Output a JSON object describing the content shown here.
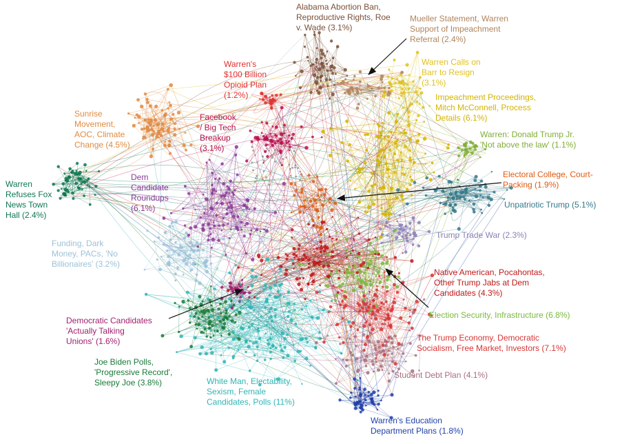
{
  "clusters": [
    {
      "label": [
        "Alabama Abortion Ban,",
        "Reproductive Rights, Roe",
        "v. Wade (3.1%)"
      ],
      "color": "#7a5038"
    },
    {
      "label": [
        "Mueller Statement, Warren",
        "Support of Impeachment",
        "Referral (2.4%)"
      ],
      "color": "#b0845c"
    },
    {
      "label": [
        "Warren Calls on",
        "Barr to Resign",
        "(3.1%)"
      ],
      "color": "#e0c21e"
    },
    {
      "label": [
        "Impeachment Proceedings,",
        "Mitch McConnell, Process",
        "Details (6.1%)"
      ],
      "color": "#d4b400"
    },
    {
      "label": [
        "Warren: Donald Trump Jr.",
        "'Not above the law' (1.1%)"
      ],
      "color": "#7fae36"
    },
    {
      "label": [
        "Electoral College, Court-",
        "Packing (1.9%)"
      ],
      "color": "#e05a10"
    },
    {
      "label": [
        "Unpatriotic Trump (5.1%)"
      ],
      "color": "#347888"
    },
    {
      "label": [
        "Trump Trade War (2.3%)"
      ],
      "color": "#8a80b8"
    },
    {
      "label": [
        "Native American, Pocahontas,",
        "Other Trump Jabs at Dem",
        "Candidates (4.3%)"
      ],
      "color": "#c01818"
    },
    {
      "label": [
        "Election Security, Infrastructure (6.8%)"
      ],
      "color": "#7cb83e"
    },
    {
      "label": [
        "The Trump Economy, Democratic",
        "Socialism, Free Market, Investors (7.1%)"
      ],
      "color": "#d83434"
    },
    {
      "label": [
        "Student Debt Plan (4.1%)"
      ],
      "color": "#a86e7c"
    },
    {
      "label": [
        "Warren's Education",
        "Department Plans (1.8%)"
      ],
      "color": "#2040a8"
    },
    {
      "label": [
        "White Man, Electability,",
        "Sexism, Female",
        "Candidates, Polls (11%)"
      ],
      "color": "#2eb4b4"
    },
    {
      "label": [
        "Joe Biden Polls,",
        "'Progressive Record',",
        "Sleepy Joe (3.8%)"
      ],
      "color": "#187a38"
    },
    {
      "label": [
        "Democratic Candidates",
        "'Actually Talking",
        "Unions' (1.6%)"
      ],
      "color": "#a0206e"
    },
    {
      "label": [
        "Funding, Dark",
        "Money, PACs, 'No",
        "Billionaires' (3.2%)"
      ],
      "color": "#9cc2d8"
    },
    {
      "label": [
        "Warren",
        "Refuses Fox",
        "News Town",
        "Hall (2.4%)"
      ],
      "color": "#0e7850"
    },
    {
      "label": [
        "Dem",
        "Candidate",
        "Roundups",
        "(6.1%)"
      ],
      "color": "#8a3a98"
    },
    {
      "label": [
        "Sunrise",
        "Movement,",
        "AOC, Climate",
        "Change (4.5%)"
      ],
      "color": "#e08a40"
    },
    {
      "label": [
        "Facebook",
        "/ Big Tech",
        "Breakup",
        "(3.1%)"
      ],
      "color": "#b8104c"
    },
    {
      "label": [
        "Warren's",
        "$100 Billion",
        "Opioid Plan",
        "(1.2%)"
      ],
      "color": "#e03030"
    }
  ]
}
